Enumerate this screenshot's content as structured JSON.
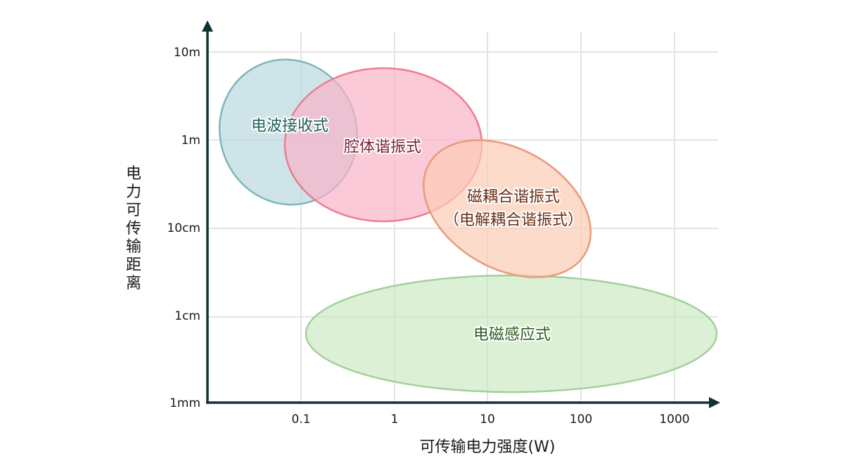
{
  "chart_data": {
    "type": "scatter",
    "subtype": "region-ellipses",
    "title": "",
    "xlabel": "可传输电力强度(W)",
    "ylabel": "电力可传输距离",
    "x_scale": "log",
    "y_scale": "log",
    "x_ticks": [
      "0.1",
      "1",
      "10",
      "100",
      "1000"
    ],
    "y_ticks": [
      "10m",
      "1m",
      "10cm",
      "1cm",
      "1mm"
    ],
    "grid": true,
    "legend": "none",
    "regions": [
      {
        "name": "电波接收式",
        "lines": [
          "电波接收式"
        ],
        "power_range_W": [
          0.01,
          0.5
        ],
        "distance_range": [
          "~10cm",
          "~8m"
        ],
        "fill": "#b3d5dd",
        "stroke": "#7fb5bd",
        "text_color": "#1f5f5c"
      },
      {
        "name": "腔体谐振式",
        "lines": [
          "腔体谐振式"
        ],
        "power_range_W": [
          0.1,
          10
        ],
        "distance_range": [
          "~10cm",
          "~7m"
        ],
        "fill": "#f9b4c7",
        "stroke": "#ee7b8f",
        "text_color": "#7a1f35"
      },
      {
        "name": "磁耦合谐振式(电解耦合谐振式)",
        "lines": [
          "磁耦合谐振式",
          "（电解耦合谐振式）"
        ],
        "power_range_W": [
          0.3,
          150
        ],
        "distance_range": [
          "~3cm",
          "~90cm"
        ],
        "fill": "#fbcdb6",
        "stroke": "#e79a7c",
        "text_color": "#6b2e16"
      },
      {
        "name": "电磁感应式",
        "lines": [
          "电磁感应式"
        ],
        "power_range_W": [
          0.1,
          2000
        ],
        "distance_range": [
          "~2mm",
          "~3cm"
        ],
        "fill": "#cbe9c3",
        "stroke": "#a3d09a",
        "text_color": "#2c5e22"
      }
    ]
  }
}
